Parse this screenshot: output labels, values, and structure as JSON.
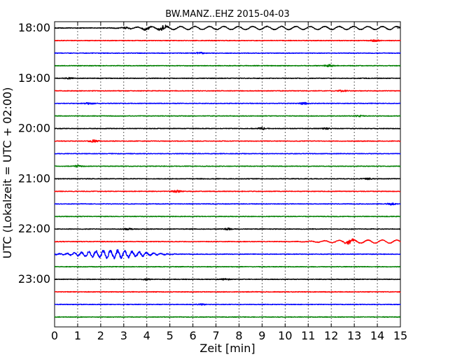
{
  "chart_data": {
    "type": "line",
    "title": "BW.MANZ..EHZ 2015-04-03",
    "xlabel": "Zeit  [min]",
    "ylabel": "UTC (Lokalzeit = UTC + 02:00)",
    "xlim": [
      0,
      15
    ],
    "x_ticks": [
      "0",
      "1",
      "2",
      "3",
      "4",
      "5",
      "6",
      "7",
      "8",
      "9",
      "10",
      "11",
      "12",
      "13",
      "14",
      "15"
    ],
    "y_tick_labels": [
      "18:00",
      "19:00",
      "20:00",
      "21:00",
      "22:00",
      "23:00"
    ],
    "trace_interval_minutes": 15,
    "grid": "vertical dotted lines at each minute",
    "series_colors": [
      "#000000",
      "#ff0000",
      "#0000ff",
      "#007f00"
    ],
    "traces": [
      {
        "start": "18:00",
        "color": "#000000",
        "events": [
          [
            3.1,
            0.35
          ],
          [
            4.0,
            0.55
          ],
          [
            4.7,
            0.9
          ]
        ]
      },
      {
        "start": "18:15",
        "color": "#ff0000",
        "events": [
          [
            13.9,
            0.35
          ]
        ]
      },
      {
        "start": "18:30",
        "color": "#0000ff",
        "events": [
          [
            6.3,
            0.3
          ]
        ]
      },
      {
        "start": "18:45",
        "color": "#007f00",
        "events": [
          [
            11.9,
            0.5
          ]
        ]
      },
      {
        "start": "19:00",
        "color": "#000000",
        "events": [
          [
            0.6,
            0.3
          ]
        ]
      },
      {
        "start": "19:15",
        "color": "#ff0000",
        "events": [
          [
            12.5,
            0.35
          ]
        ]
      },
      {
        "start": "19:30",
        "color": "#0000ff",
        "events": [
          [
            1.5,
            0.35
          ],
          [
            10.8,
            0.4
          ]
        ]
      },
      {
        "start": "19:45",
        "color": "#007f00",
        "events": [
          [
            13.2,
            0.3
          ]
        ]
      },
      {
        "start": "20:00",
        "color": "#000000",
        "events": [
          [
            9.0,
            0.45
          ],
          [
            11.8,
            0.3
          ]
        ]
      },
      {
        "start": "20:15",
        "color": "#ff0000",
        "events": [
          [
            1.7,
            0.6
          ]
        ]
      },
      {
        "start": "20:30",
        "color": "#0000ff",
        "events": []
      },
      {
        "start": "20:45",
        "color": "#007f00",
        "events": [
          [
            1.0,
            0.35
          ]
        ]
      },
      {
        "start": "21:00",
        "color": "#000000",
        "events": [
          [
            13.6,
            0.3
          ]
        ]
      },
      {
        "start": "21:15",
        "color": "#ff0000",
        "events": [
          [
            5.3,
            0.45
          ]
        ]
      },
      {
        "start": "21:30",
        "color": "#0000ff",
        "events": [
          [
            14.6,
            0.5
          ]
        ]
      },
      {
        "start": "21:45",
        "color": "#007f00",
        "events": []
      },
      {
        "start": "22:00",
        "color": "#000000",
        "events": [
          [
            3.2,
            0.3
          ],
          [
            7.5,
            0.35
          ]
        ]
      },
      {
        "start": "22:15",
        "color": "#ff0000",
        "events": [
          [
            12.8,
            0.8
          ]
        ]
      },
      {
        "start": "22:30",
        "color": "#0000ff",
        "events": [
          [
            2.5,
            1.5
          ]
        ]
      },
      {
        "start": "22:45",
        "color": "#007f00",
        "events": []
      },
      {
        "start": "23:00",
        "color": "#000000",
        "events": [
          [
            7.4,
            0.35
          ],
          [
            4.0,
            0.3
          ]
        ]
      },
      {
        "start": "23:15",
        "color": "#ff0000",
        "events": []
      },
      {
        "start": "23:30",
        "color": "#0000ff",
        "events": [
          [
            6.4,
            0.3
          ]
        ]
      },
      {
        "start": "23:45",
        "color": "#007f00",
        "events": []
      }
    ]
  }
}
